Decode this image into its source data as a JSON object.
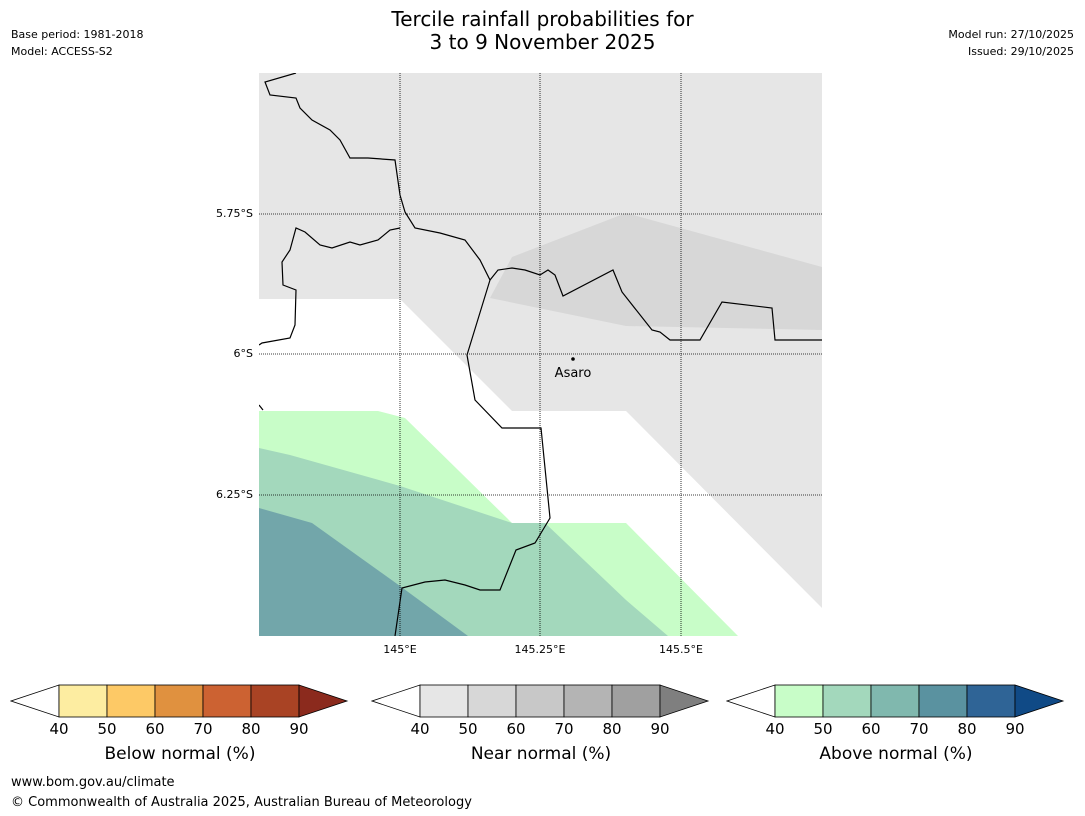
{
  "title_line1": "Tercile rainfall probabilities for",
  "title_line2": "3 to 9 November 2025",
  "meta_left": [
    "Base period: 1981-2018",
    "Model: ACCESS-S2"
  ],
  "meta_right": [
    "Model run: 27/10/2025",
    "Issued: 29/10/2025"
  ],
  "map": {
    "lat_labels": [
      "5.75°S",
      "6°S",
      "6.25°S"
    ],
    "lon_labels": [
      "145°E",
      "145.25°E",
      "145.5°E"
    ],
    "place": "Asaro",
    "background_color": "#e6e6e6"
  },
  "colorbars": [
    {
      "title": "Below normal (%)",
      "ticks": [
        "40",
        "50",
        "60",
        "70",
        "80",
        "90"
      ],
      "colors": [
        "#fdeda1",
        "#fdc966",
        "#e0913f",
        "#cc6232",
        "#a94324"
      ],
      "extend_color": "#8b2a1d"
    },
    {
      "title": "Near normal (%)",
      "ticks": [
        "40",
        "50",
        "60",
        "70",
        "80",
        "90"
      ],
      "colors": [
        "#e6e6e6",
        "#d7d7d7",
        "#c8c8c8",
        "#b4b4b4",
        "#a0a0a0"
      ],
      "extend_color": "#7f7f7f"
    },
    {
      "title": "Above normal (%)",
      "ticks": [
        "40",
        "50",
        "60",
        "70",
        "80",
        "90"
      ],
      "colors": [
        "#c8fdc8",
        "#a3d8bc",
        "#80b8ae",
        "#5a92a0",
        "#2f6496"
      ],
      "extend_color": "#104a86"
    }
  ],
  "footer": {
    "url": "www.bom.gov.au/climate",
    "copyright": "© Commonwealth of Australia 2025, Australian Bureau of Meteorology"
  }
}
